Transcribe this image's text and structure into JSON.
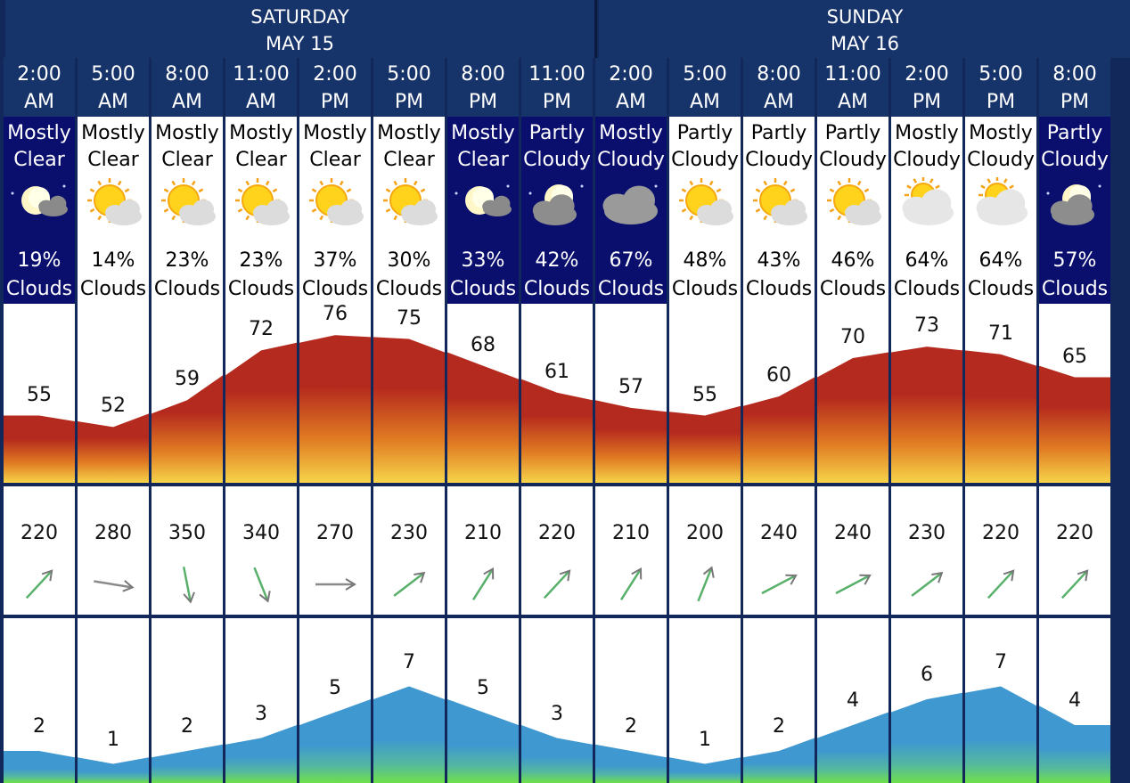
{
  "days": [
    {
      "name": "SATURDAY",
      "date": "MAY 15"
    },
    {
      "name": "SUNDAY",
      "date": "MAY 16"
    }
  ],
  "slots": [
    {
      "time1": "2:00",
      "time2": "AM",
      "cond1": "Mostly",
      "cond2": "Clear",
      "pct": "19%",
      "clouds": "Clouds",
      "night": true,
      "icon": "moon-clear-icon",
      "temp": 55,
      "wind": 220,
      "wave": 2
    },
    {
      "time1": "5:00",
      "time2": "AM",
      "cond1": "Mostly",
      "cond2": "Clear",
      "pct": "14%",
      "clouds": "Clouds",
      "night": false,
      "icon": "sun-cloud-icon",
      "temp": 52,
      "wind": 280,
      "wave": 1
    },
    {
      "time1": "8:00",
      "time2": "AM",
      "cond1": "Mostly",
      "cond2": "Clear",
      "pct": "23%",
      "clouds": "Clouds",
      "night": false,
      "icon": "sun-cloud-icon",
      "temp": 59,
      "wind": 350,
      "wave": 2
    },
    {
      "time1": "11:00",
      "time2": "AM",
      "cond1": "Mostly",
      "cond2": "Clear",
      "pct": "23%",
      "clouds": "Clouds",
      "night": false,
      "icon": "sun-cloud-icon",
      "temp": 72,
      "wind": 340,
      "wave": 3
    },
    {
      "time1": "2:00",
      "time2": "PM",
      "cond1": "Mostly",
      "cond2": "Clear",
      "pct": "37%",
      "clouds": "Clouds",
      "night": false,
      "icon": "sun-cloud-icon",
      "temp": 76,
      "wind": 270,
      "wave": 5
    },
    {
      "time1": "5:00",
      "time2": "PM",
      "cond1": "Mostly",
      "cond2": "Clear",
      "pct": "30%",
      "clouds": "Clouds",
      "night": false,
      "icon": "sun-cloud-icon",
      "temp": 75,
      "wind": 230,
      "wave": 7
    },
    {
      "time1": "8:00",
      "time2": "PM",
      "cond1": "Mostly",
      "cond2": "Clear",
      "pct": "33%",
      "clouds": "Clouds",
      "night": true,
      "icon": "moon-clear-icon",
      "temp": 68,
      "wind": 210,
      "wave": 5
    },
    {
      "time1": "11:00",
      "time2": "PM",
      "cond1": "Partly",
      "cond2": "Cloudy",
      "pct": "42%",
      "clouds": "Clouds",
      "night": true,
      "icon": "moon-cloud-icon",
      "temp": 61,
      "wind": 220,
      "wave": 3
    },
    {
      "time1": "2:00",
      "time2": "AM",
      "cond1": "Mostly",
      "cond2": "Cloudy",
      "pct": "67%",
      "clouds": "Clouds",
      "night": true,
      "icon": "night-cloudy-icon",
      "temp": 57,
      "wind": 210,
      "wave": 2
    },
    {
      "time1": "5:00",
      "time2": "AM",
      "cond1": "Partly",
      "cond2": "Cloudy",
      "pct": "48%",
      "clouds": "Clouds",
      "night": false,
      "icon": "sun-cloud-icon",
      "temp": 55,
      "wind": 200,
      "wave": 1
    },
    {
      "time1": "8:00",
      "time2": "AM",
      "cond1": "Partly",
      "cond2": "Cloudy",
      "pct": "43%",
      "clouds": "Clouds",
      "night": false,
      "icon": "sun-cloud-icon",
      "temp": 60,
      "wind": 240,
      "wave": 2
    },
    {
      "time1": "11:00",
      "time2": "AM",
      "cond1": "Partly",
      "cond2": "Cloudy",
      "pct": "46%",
      "clouds": "Clouds",
      "night": false,
      "icon": "sun-cloud-icon",
      "temp": 70,
      "wind": 240,
      "wave": 4
    },
    {
      "time1": "2:00",
      "time2": "PM",
      "cond1": "Mostly",
      "cond2": "Cloudy",
      "pct": "64%",
      "clouds": "Clouds",
      "night": false,
      "icon": "cloudy-sun-icon",
      "temp": 73,
      "wind": 230,
      "wave": 6
    },
    {
      "time1": "5:00",
      "time2": "PM",
      "cond1": "Mostly",
      "cond2": "Cloudy",
      "pct": "64%",
      "clouds": "Clouds",
      "night": false,
      "icon": "cloudy-sun-icon",
      "temp": 71,
      "wind": 220,
      "wave": 7
    },
    {
      "time1": "8:00",
      "time2": "PM",
      "cond1": "Partly",
      "cond2": "Cloudy",
      "pct": "57%",
      "clouds": "Clouds",
      "night": true,
      "icon": "moon-cloud-icon",
      "temp": 65,
      "wind": 220,
      "wave": 4
    }
  ],
  "colors": {
    "header_bg": "#17346a",
    "night_bg": "#0a0f6e",
    "temp_top": "#b52a1e",
    "temp_bottom": "#f6d44a",
    "wave_top": "#3f98cf",
    "wave_bottom": "#6fe04a",
    "arrow_green": "#58b06a"
  }
}
